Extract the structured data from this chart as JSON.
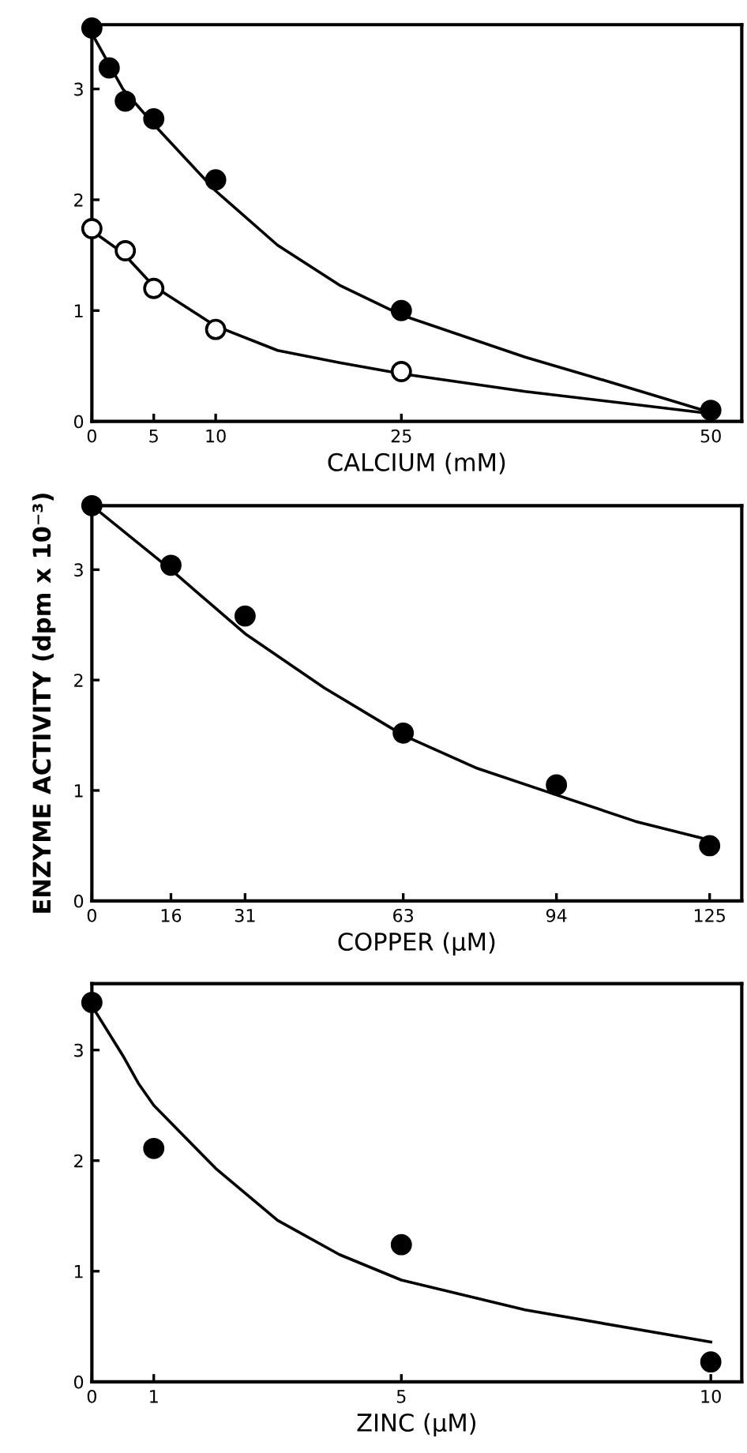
{
  "chart_data": [
    {
      "type": "scatter",
      "xlabel": "CALCIUM (mM)",
      "xlim": [
        0,
        52.5
      ],
      "ylim": [
        0,
        3.58
      ],
      "xticks": [
        0,
        5,
        10,
        25,
        50
      ],
      "yticks": [
        0,
        1,
        2,
        3
      ],
      "series": [
        {
          "color": "#000000",
          "marker": "circle",
          "x": [
            0,
            1.4,
            2.7,
            5,
            10,
            25,
            50
          ],
          "values": [
            3.55,
            3.19,
            2.89,
            2.73,
            2.18,
            1.0,
            0.1
          ]
        },
        {
          "color": "#ffffff",
          "marker": "circle",
          "x": [
            0,
            2.7,
            5,
            10,
            25
          ],
          "values": [
            1.74,
            1.54,
            1.2,
            0.83,
            0.45
          ]
        },
        {
          "type": "line",
          "color": "#000000",
          "marker": "none",
          "x": [
            0,
            2.5,
            5,
            10,
            15,
            20,
            25,
            35,
            42,
            50
          ],
          "values": [
            3.5,
            3.0,
            2.68,
            2.08,
            1.59,
            1.23,
            0.96,
            0.58,
            0.35,
            0.08
          ]
        },
        {
          "type": "line",
          "color": "#000000",
          "marker": "none",
          "x": [
            0,
            2.5,
            5,
            10,
            15,
            20,
            25,
            35,
            50
          ],
          "values": [
            1.72,
            1.52,
            1.22,
            0.86,
            0.64,
            0.53,
            0.43,
            0.27,
            0.07
          ]
        }
      ]
    },
    {
      "type": "scatter",
      "xlabel": "COPPER (µM)",
      "ylabel": "ENZYME ACTIVITY (dpm x 10⁻³)",
      "xlim": [
        0,
        131.5
      ],
      "ylim": [
        0,
        3.58
      ],
      "xticks": [
        0,
        16,
        31,
        63,
        94,
        125
      ],
      "yticks": [
        0,
        1,
        2,
        3
      ],
      "series": [
        {
          "color": "#000000",
          "marker": "circle",
          "x": [
            0,
            16,
            31,
            63,
            94,
            125
          ],
          "values": [
            3.58,
            3.04,
            2.58,
            1.52,
            1.05,
            0.5
          ]
        },
        {
          "type": "line",
          "color": "#000000",
          "marker": "none",
          "x": [
            0,
            16,
            31,
            47,
            63,
            78,
            94,
            110,
            125
          ],
          "values": [
            3.58,
            3.0,
            2.42,
            1.93,
            1.5,
            1.2,
            0.96,
            0.72,
            0.55
          ]
        }
      ]
    },
    {
      "type": "scatter",
      "xlabel": "ZINC (µM)",
      "xlim": [
        0,
        10.5
      ],
      "ylim": [
        0,
        3.6
      ],
      "xticks": [
        0,
        1,
        5,
        10
      ],
      "yticks": [
        0,
        1,
        2,
        3
      ],
      "series": [
        {
          "color": "#000000",
          "marker": "circle",
          "x": [
            0,
            1,
            5,
            10
          ],
          "values": [
            3.43,
            2.11,
            1.24,
            0.18
          ]
        },
        {
          "type": "line",
          "color": "#000000",
          "marker": "none",
          "x": [
            0,
            0.5,
            0.75,
            1,
            2,
            3,
            4,
            5,
            7,
            10
          ],
          "values": [
            3.4,
            2.95,
            2.7,
            2.5,
            1.93,
            1.46,
            1.15,
            0.92,
            0.65,
            0.36
          ]
        }
      ]
    }
  ]
}
